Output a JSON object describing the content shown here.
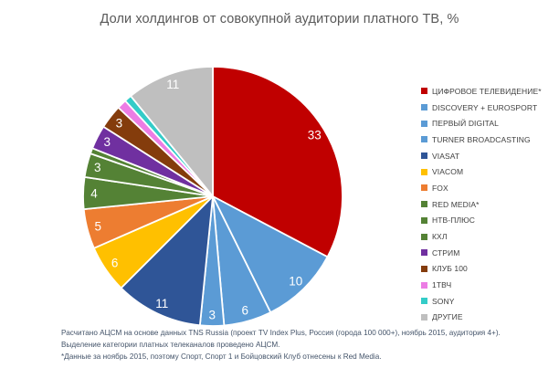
{
  "title": "Доли холдингов от совокупной аудитории платного ТВ, %",
  "chart_data": {
    "type": "pie",
    "title": "Доли холдингов от совокупной аудитории платного ТВ, %",
    "legend_position": "right",
    "start_angle_deg": 0,
    "direction": "clockwise",
    "unit": "%",
    "slices": [
      {
        "name": "ЦИФРОВОЕ ТЕЛЕВИДЕНИЕ*",
        "value": 33,
        "label": "33",
        "color": "#C00000"
      },
      {
        "name": "DISCOVERY + EUROSPORT",
        "value": 10,
        "label": "10",
        "color": "#5B9BD5"
      },
      {
        "name": "ПЕРВЫЙ DIGITAL",
        "value": 6,
        "label": "6",
        "color": "#5B9BD5"
      },
      {
        "name": "TURNER BROADCASTING",
        "value": 3,
        "label": "3",
        "color": "#5B9BD5"
      },
      {
        "name": "VIASAT",
        "value": 11,
        "label": "11",
        "color": "#2F5597"
      },
      {
        "name": "VIACOM",
        "value": 6,
        "label": "6",
        "color": "#FFC000"
      },
      {
        "name": "FOX",
        "value": 5,
        "label": "5",
        "color": "#ED7D31"
      },
      {
        "name": "RED MEDIA*",
        "value": 4,
        "label": "4",
        "color": "#548235"
      },
      {
        "name": "НТВ-ПЛЮС",
        "value": 3,
        "label": "3",
        "color": "#548235"
      },
      {
        "name": "КХЛ",
        "value": 0.7,
        "label": "",
        "color": "#548235"
      },
      {
        "name": "СТРИМ",
        "value": 3,
        "label": "3",
        "color": "#7030A0"
      },
      {
        "name": "КЛУБ 100",
        "value": 3,
        "label": "3",
        "color": "#843C0C"
      },
      {
        "name": "1ТВЧ",
        "value": 1.2,
        "label": "",
        "color": "#EC7DE4"
      },
      {
        "name": "SONY",
        "value": 0.9,
        "label": "",
        "color": "#33CCC8"
      },
      {
        "name": "ДРУГИЕ",
        "value": 11,
        "label": "11",
        "color": "#BFBFBF"
      }
    ]
  },
  "footnotes": {
    "line1": "Расчитано АЦСМ на основе данных TNS Russia (проект TV Index Plus, Россия (города 100 000+), ноябрь 2015, аудитория 4+).",
    "line2": "Выделение категории платных телеканалов проведено АЦСМ.",
    "line3": "*Данные за ноябрь 2015, поэтому Спорт, Спорт 1 и Бойцовский Клуб отнесены к Red Media."
  },
  "colors": {
    "background": "#FFFFFF",
    "title_text": "#595959",
    "legend_text": "#3F3F3F",
    "footnote_text": "#44546A",
    "slice_border": "#FFFFFF",
    "slice_label": "#FFFFFF"
  }
}
